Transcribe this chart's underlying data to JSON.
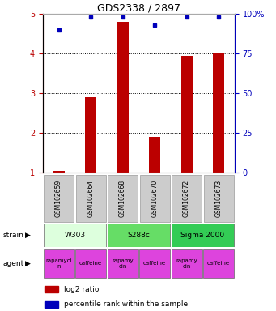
{
  "title": "GDS2338 / 2897",
  "samples": [
    "GSM102659",
    "GSM102664",
    "GSM102668",
    "GSM102670",
    "GSM102672",
    "GSM102673"
  ],
  "log2_ratio": [
    1.05,
    2.9,
    4.8,
    1.9,
    3.95,
    4.0
  ],
  "percentile": [
    90,
    98,
    98,
    93,
    98,
    98
  ],
  "ylim_left": [
    1,
    5
  ],
  "ylim_right": [
    0,
    100
  ],
  "yticks_left": [
    1,
    2,
    3,
    4,
    5
  ],
  "yticks_right": [
    0,
    25,
    50,
    75,
    100
  ],
  "ytick_labels_right": [
    "0",
    "25",
    "50",
    "75",
    "100%"
  ],
  "bar_color": "#bb0000",
  "dot_color": "#0000bb",
  "strains": [
    {
      "label": "W303",
      "cols": [
        0,
        1
      ],
      "color": "#ddffdd"
    },
    {
      "label": "S288c",
      "cols": [
        2,
        3
      ],
      "color": "#66dd66"
    },
    {
      "label": "Sigma 2000",
      "cols": [
        4,
        5
      ],
      "color": "#33cc55"
    }
  ],
  "agents": [
    "rapamycin",
    "caffeine",
    "rapamycin",
    "caffeine",
    "rapamycin",
    "caffeine"
  ],
  "agents_display": [
    "rapamyci\nn",
    "caffeine",
    "rapamy\ncin",
    "caffeine",
    "rapamy\ncin",
    "caffeine"
  ],
  "agent_color": "#dd44dd",
  "sample_box_color": "#cccccc",
  "legend_bar_color": "#bb0000",
  "legend_dot_color": "#0000bb",
  "left_tick_color": "#bb0000",
  "right_tick_color": "#0000bb",
  "bar_width": 0.35
}
